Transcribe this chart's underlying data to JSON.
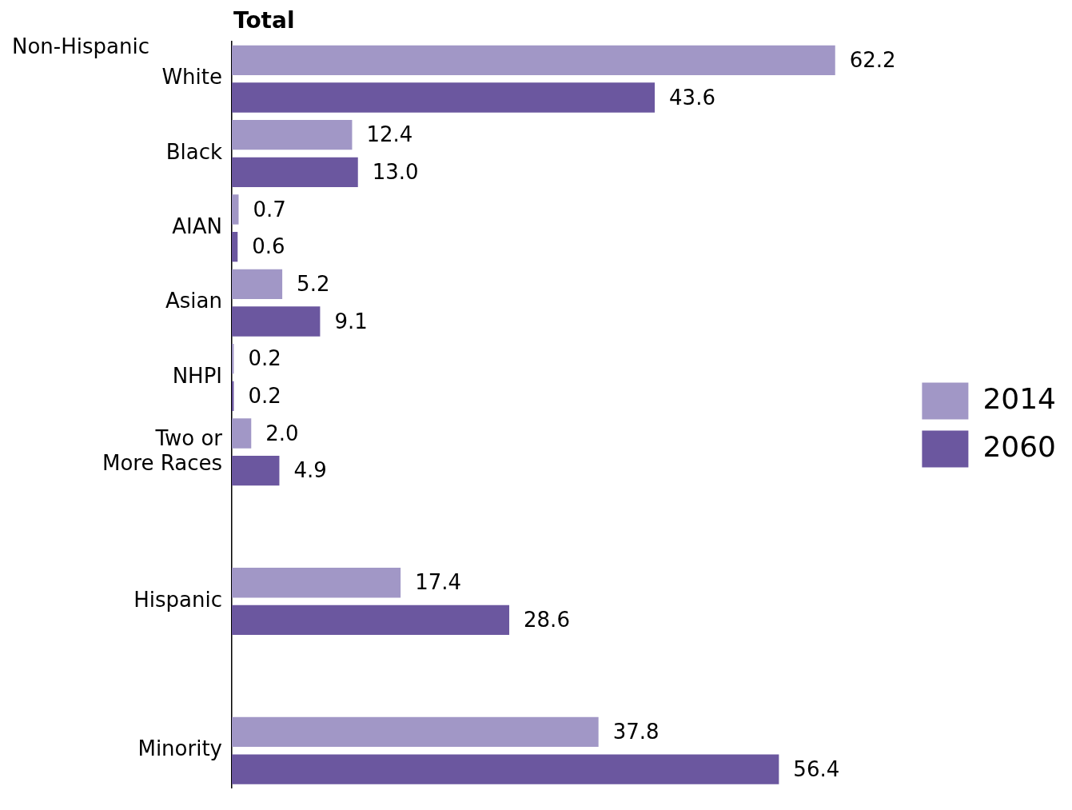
{
  "chart_data": {
    "type": "bar",
    "orientation": "horizontal",
    "title": "Total",
    "annotations": [
      "Non-Hispanic"
    ],
    "categories": [
      "White",
      "Black",
      "AIAN",
      "Asian",
      "NHPI",
      "Two or More Races",
      null,
      "Hispanic",
      null,
      "Minority"
    ],
    "series": [
      {
        "name": "2014",
        "color": "#a197c6",
        "values": [
          62.2,
          12.4,
          0.7,
          5.2,
          0.2,
          2.0,
          null,
          17.4,
          null,
          37.8
        ],
        "value_labels": [
          "62.2",
          "12.4",
          "0.7",
          "5.2",
          "0.2",
          "2.0",
          null,
          "17.4",
          null,
          "37.8"
        ]
      },
      {
        "name": "2060",
        "color": "#6b579f",
        "values": [
          43.6,
          13.0,
          0.6,
          9.1,
          0.2,
          4.9,
          null,
          28.6,
          null,
          56.4
        ],
        "value_labels": [
          "43.6",
          "13.0",
          "0.6",
          "9.1",
          "0.2",
          "4.9",
          null,
          "28.6",
          null,
          "56.4"
        ]
      }
    ],
    "tick_labels": "y",
    "grid": false,
    "legend": "right"
  }
}
